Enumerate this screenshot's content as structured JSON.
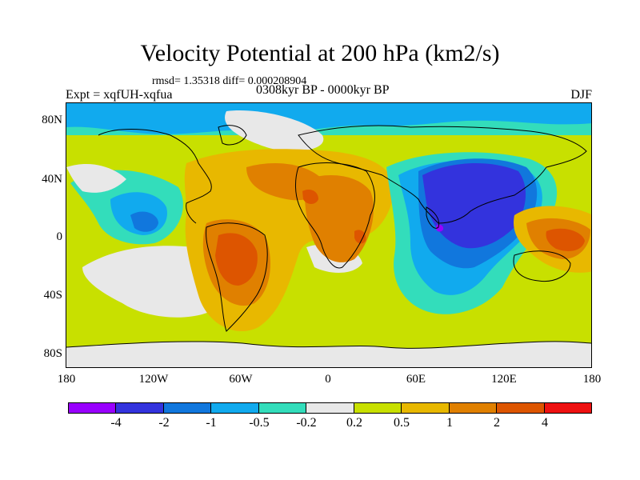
{
  "title": "Velocity Potential at 200 hPa (km2/s)",
  "subtitle": "rmsd= 1.35318 diff= 0.000208904",
  "experiment_label": "Expt = xqfUH-xqfua",
  "period_label": "0308kyr BP - 0000kyr BP",
  "season_label": "DJF",
  "lat_labels": [
    "80N",
    "40N",
    "0",
    "40S",
    "80S"
  ],
  "lon_labels": [
    "180",
    "120W",
    "60W",
    "0",
    "60E",
    "120E",
    "180"
  ],
  "colorbar": {
    "colors": [
      "#9900ff",
      "#3333dd",
      "#1177dd",
      "#11aaee",
      "#33ddbb",
      "#e8e8e8",
      "#c8e000",
      "#e8b800",
      "#e08000",
      "#dd5500",
      "#ee1111"
    ],
    "labels": [
      "-4",
      "-2",
      "-1",
      "-0.5",
      "-0.2",
      "0.2",
      "0.5",
      "1",
      "2",
      "4"
    ]
  },
  "map_fields": {
    "palette": {
      "very_neg": "#9900ff",
      "neg_strong": "#3333dd",
      "neg_mid": "#1177dd",
      "neg_weak": "#11aaee",
      "neg_slight": "#33ddbb",
      "neutral": "#e8e8e8",
      "pos_slight": "#c8e000",
      "pos_weak": "#e8b800",
      "pos_mid": "#e08000",
      "pos_strong": "#dd5500"
    }
  }
}
